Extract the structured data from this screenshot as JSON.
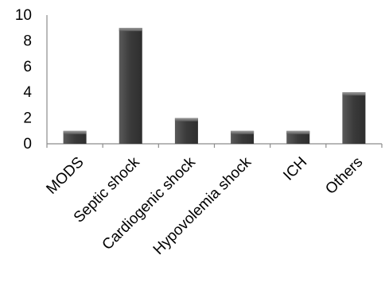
{
  "chart_data": {
    "type": "bar",
    "title": "",
    "xlabel": "",
    "ylabel": "",
    "categories": [
      "MODS",
      "Septic shock",
      "Cardiogenic shock",
      "Hypovolemia shock",
      "ICH",
      "Others"
    ],
    "values": [
      1,
      9,
      2,
      1,
      1,
      4
    ],
    "ylim": [
      0,
      10
    ],
    "yticks": [
      "0",
      "2",
      "4",
      "6",
      "8",
      "10"
    ],
    "grid": false,
    "legend": "none",
    "bar_color": "#4a4a4a",
    "bar_highlight": "#8a8a8a",
    "axis_color": "#8c8c8c"
  }
}
